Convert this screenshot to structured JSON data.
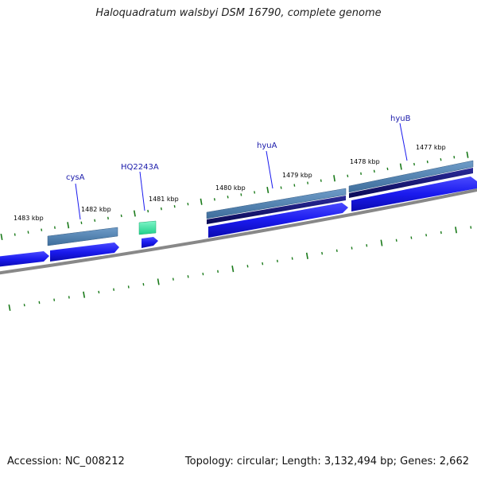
{
  "title": "Haloquadratum walsbyi DSM 16790, complete genome",
  "footer": {
    "accession": "Accession: NC_008212",
    "summary": "Topology: circular; Length: 3,132,494 bp; Genes: 2,662"
  },
  "ticks": [
    "1483 kbp",
    "1482 kbp",
    "1481 kbp",
    "1480 kbp",
    "1479 kbp",
    "1478 kbp",
    "1477 kbp"
  ],
  "genes": [
    "cysA",
    "HQ2243A",
    "hyuA",
    "hyuB"
  ],
  "colors": {
    "backbone": "#888888",
    "cds_forward": "#1a1aee",
    "gene_dark": "#0d0d6e",
    "gene_steel": "#4a7aa8",
    "rna": "#33dd99",
    "tick": "#1a7a1a",
    "label": "#1a1aaa"
  }
}
